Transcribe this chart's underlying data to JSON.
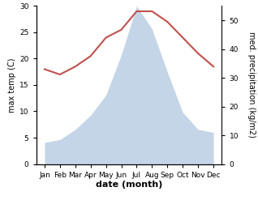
{
  "months": [
    "Jan",
    "Feb",
    "Mar",
    "Apr",
    "May",
    "Jun",
    "Jul",
    "Aug",
    "Sep",
    "Oct",
    "Nov",
    "Dec"
  ],
  "temperature": [
    18.0,
    17.0,
    18.5,
    20.5,
    24.0,
    25.5,
    29.0,
    29.0,
    27.0,
    24.0,
    21.0,
    18.5
  ],
  "precipitation": [
    7.5,
    8.5,
    12.0,
    17.0,
    24.0,
    38.0,
    55.0,
    47.0,
    32.0,
    18.0,
    12.0,
    11.0
  ],
  "temp_color": "#c0504d",
  "precip_fill_color": "#c5d5e8",
  "left_ylim": [
    0,
    30
  ],
  "right_ylim": [
    0,
    55
  ],
  "left_ylabel": "max temp (C)",
  "right_ylabel": "med. precipitation (kg/m2)",
  "xlabel": "date (month)",
  "left_yticks": [
    0,
    5,
    10,
    15,
    20,
    25,
    30
  ],
  "right_yticks": [
    0,
    10,
    20,
    30,
    40,
    50
  ],
  "bg_color": "#ffffff"
}
